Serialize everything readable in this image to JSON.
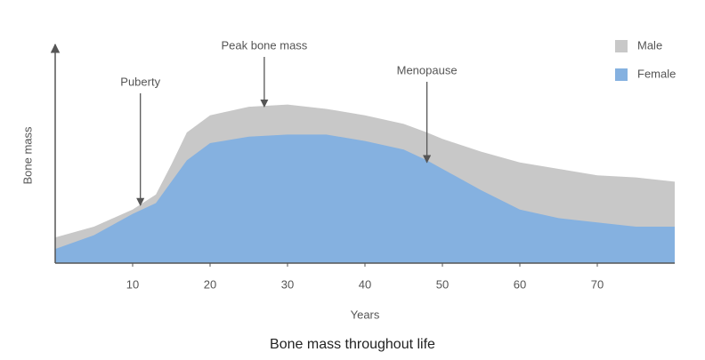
{
  "chart_data": {
    "type": "area",
    "caption": "Bone mass throughout life",
    "xlabel": "Years",
    "ylabel": "Bone mass",
    "x": [
      0,
      5,
      10,
      13,
      15,
      17,
      20,
      25,
      30,
      35,
      40,
      45,
      48,
      50,
      55,
      60,
      65,
      70,
      75,
      80
    ],
    "series": [
      {
        "name": "Male",
        "color": "#c8c8c8",
        "values": [
          12,
          17,
          25,
          32,
          46,
          61,
          69,
          73,
          74,
          72,
          69,
          65,
          61,
          58,
          52,
          47,
          44,
          41,
          40,
          38
        ]
      },
      {
        "name": "Female",
        "color": "#85b1e0",
        "values": [
          6.6,
          13,
          23,
          28,
          38,
          48,
          56,
          59,
          60,
          60,
          57,
          53,
          48,
          44,
          34,
          25,
          21,
          19,
          17,
          17
        ]
      }
    ],
    "xlim": [
      0,
      80
    ],
    "xticks": [
      10,
      20,
      30,
      40,
      50,
      60,
      70
    ],
    "ylim": [
      0,
      100
    ],
    "legend": "upper right",
    "annotations": [
      {
        "text": "Puberty",
        "x": 11,
        "y": 27
      },
      {
        "text": "Peak bone mass",
        "x": 27,
        "y": 73
      },
      {
        "text": "Menopause",
        "x": 48,
        "y": 47
      }
    ]
  }
}
